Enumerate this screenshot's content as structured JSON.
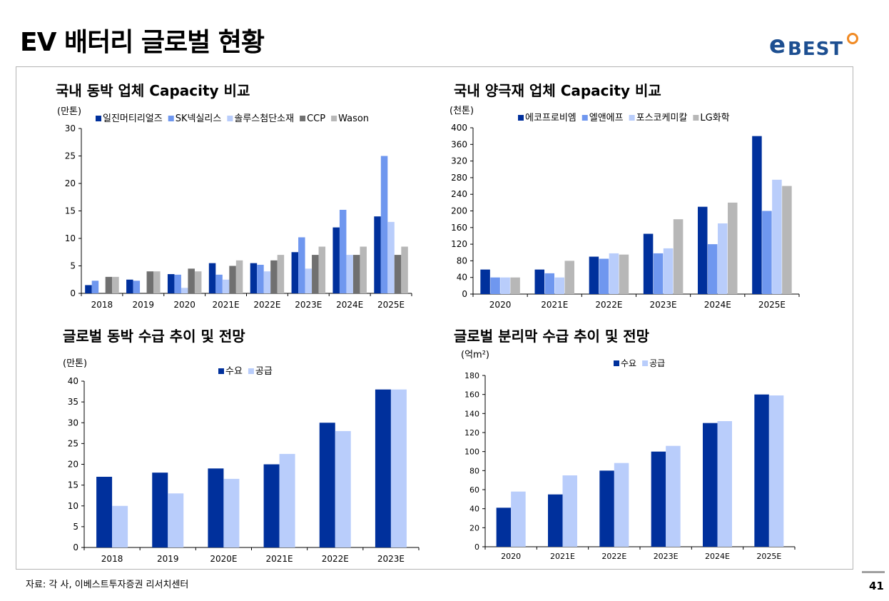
{
  "page": {
    "title": "EV 배터리 글로벌 현황",
    "page_number": "41",
    "source": "자료: 각 사, 이베스트투자증권 리서치센터"
  },
  "logo": {
    "e": "e",
    "text": "BEST"
  },
  "colors": {
    "dark_blue": "#00309c",
    "mid_blue": "#6f97ef",
    "light_blue": "#b9cdfb",
    "dark_gray": "#707070",
    "light_gray": "#b7b7b7",
    "logo_blue": "#1d4f91",
    "logo_orange": "#f08a24"
  },
  "chart_data": [
    {
      "type": "bar",
      "title": "국내 동박 업체 Capacity 비교",
      "unit": "(만톤)",
      "categories": [
        "2018",
        "2019",
        "2020",
        "2021E",
        "2022E",
        "2023E",
        "2024E",
        "2025E"
      ],
      "ylim": [
        0,
        30
      ],
      "yticks": [
        0,
        5,
        10,
        15,
        20,
        25,
        30
      ],
      "legend": "top",
      "series": [
        {
          "name": "일진머티리얼즈",
          "color": "#00309c",
          "values": [
            1.5,
            2.5,
            3.5,
            5.5,
            5.5,
            7.5,
            12,
            14
          ]
        },
        {
          "name": "SK넥실리스",
          "color": "#6f97ef",
          "values": [
            2.3,
            2.3,
            3.4,
            3.4,
            5.2,
            10.2,
            15.2,
            25
          ]
        },
        {
          "name": "솔루스첨단소재",
          "color": "#b9cdfb",
          "values": [
            0,
            0,
            1,
            2.5,
            4,
            4.5,
            7,
            13
          ]
        },
        {
          "name": "CCP",
          "color": "#707070",
          "values": [
            3,
            4,
            4.5,
            5,
            6,
            7,
            7,
            7
          ]
        },
        {
          "name": "Wason",
          "color": "#b7b7b7",
          "values": [
            3,
            4,
            4,
            6,
            7,
            8.5,
            8.5,
            8.5
          ]
        }
      ]
    },
    {
      "type": "bar",
      "title": "국내 양극재 업체 Capacity 비교",
      "unit": "(천톤)",
      "categories": [
        "2020",
        "2021E",
        "2022E",
        "2023E",
        "2024E",
        "2025E"
      ],
      "ylim": [
        0,
        400
      ],
      "yticks": [
        0,
        40,
        80,
        120,
        160,
        200,
        240,
        280,
        320,
        360,
        400
      ],
      "legend": "top",
      "series": [
        {
          "name": "에코프로비엠",
          "color": "#00309c",
          "values": [
            59,
            59,
            90,
            145,
            210,
            380
          ]
        },
        {
          "name": "엘앤에프",
          "color": "#6f97ef",
          "values": [
            40,
            50,
            85,
            98,
            120,
            200
          ]
        },
        {
          "name": "포스코케미칼",
          "color": "#b9cdfb",
          "values": [
            40,
            40,
            98,
            110,
            170,
            275
          ]
        },
        {
          "name": "LG화학",
          "color": "#b7b7b7",
          "values": [
            40,
            80,
            95,
            180,
            220,
            260
          ]
        }
      ]
    },
    {
      "type": "bar",
      "title": "글로벌 동박 수급 추이 및 전망",
      "unit": "(만톤)",
      "categories": [
        "2018",
        "2019",
        "2020E",
        "2021E",
        "2022E",
        "2023E"
      ],
      "ylim": [
        0,
        40
      ],
      "yticks": [
        0,
        5,
        10,
        15,
        20,
        25,
        30,
        35,
        40
      ],
      "legend": "top",
      "series": [
        {
          "name": "수요",
          "color": "#00309c",
          "values": [
            17,
            18,
            19,
            20,
            30,
            38
          ]
        },
        {
          "name": "공급",
          "color": "#b9cdfb",
          "values": [
            10,
            13,
            16.5,
            22.5,
            28,
            38
          ]
        }
      ]
    },
    {
      "type": "bar",
      "title": "글로벌 분리막 수급 추이 및 전망",
      "unit": "(억m²)",
      "categories": [
        "2020",
        "2021E",
        "2022E",
        "2023E",
        "2024E",
        "2025E"
      ],
      "ylim": [
        0,
        180
      ],
      "yticks": [
        0,
        20,
        40,
        60,
        80,
        100,
        120,
        140,
        160,
        180
      ],
      "legend": "top",
      "series": [
        {
          "name": "수요",
          "color": "#00309c",
          "values": [
            41,
            55,
            80,
            100,
            130,
            160
          ]
        },
        {
          "name": "공급",
          "color": "#b9cdfb",
          "values": [
            58,
            75,
            88,
            106,
            132,
            159
          ]
        }
      ]
    }
  ]
}
